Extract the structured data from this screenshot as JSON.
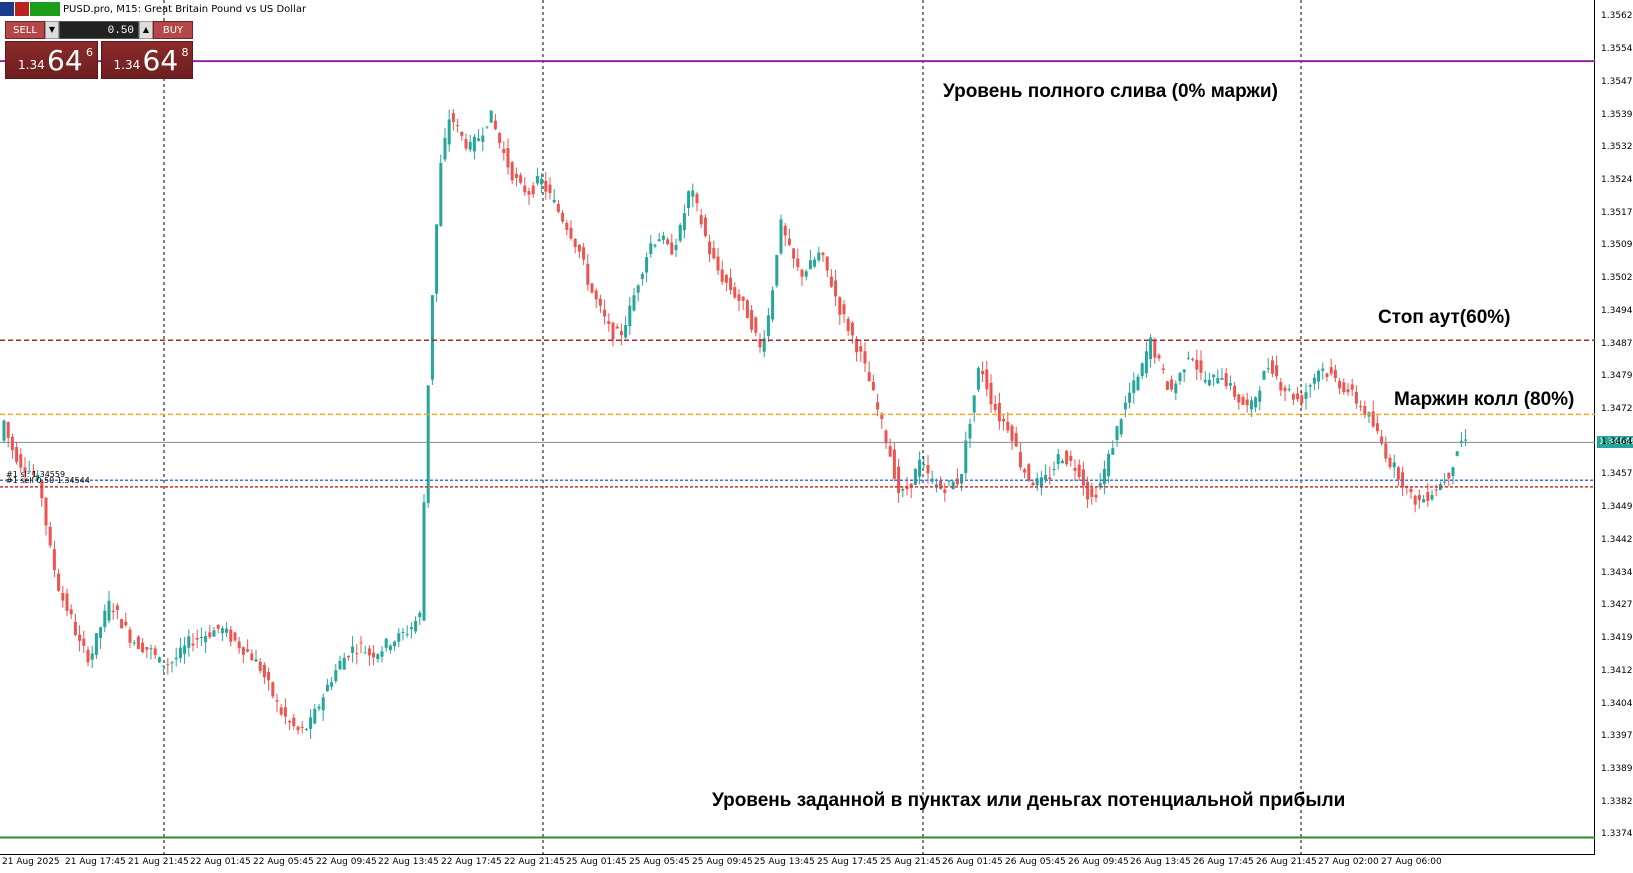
{
  "window": {
    "title": "PUSD.pro, M15:  Great Britain Pound vs US Dollar"
  },
  "trade_panel": {
    "sell_label": "SELL",
    "buy_label": "BUY",
    "lot_value": "0.50",
    "sell_price_small": "1.34",
    "sell_price_big": "64",
    "sell_price_sup": "6",
    "buy_price_small": "1.34",
    "buy_price_big": "64",
    "buy_price_sup": "8"
  },
  "annotations": {
    "full_loss": "Уровень полного слива (0% маржи)",
    "stop_out": "Стоп аут(60%)",
    "margin_call": "Маржин колл (80%)",
    "take_profit": "Уровень заданной в пунктах или деньгах потенциальной прибыли"
  },
  "order_labels": {
    "line1": "#1 sl: 1.34559",
    "line2": "#1 sell 0.50 1.34544"
  },
  "current_price_label": "1.34646",
  "y_axis": {
    "labels": [
      "1.35620",
      "1.35545",
      "1.35470",
      "1.35395",
      "1.35320",
      "1.35245",
      "1.35170",
      "1.35095",
      "1.35020",
      "1.34945",
      "1.34870",
      "1.34795",
      "1.34720",
      "1.34645",
      "1.34570",
      "1.34495",
      "1.34420",
      "1.34345",
      "1.34270",
      "1.34195",
      "1.34120",
      "1.34045",
      "1.33970",
      "1.33895",
      "1.33820",
      "1.33745"
    ]
  },
  "x_axis": {
    "labels": [
      "21 Aug 2025",
      "21 Aug 17:45",
      "21 Aug 21:45",
      "22 Aug 01:45",
      "22 Aug 05:45",
      "22 Aug 09:45",
      "22 Aug 13:45",
      "22 Aug 17:45",
      "22 Aug 21:45",
      "25 Aug 01:45",
      "25 Aug 05:45",
      "25 Aug 09:45",
      "25 Aug 13:45",
      "25 Aug 17:45",
      "25 Aug 21:45",
      "26 Aug 01:45",
      "26 Aug 05:45",
      "26 Aug 09:45",
      "26 Aug 13:45",
      "26 Aug 17:45",
      "26 Aug 21:45",
      "27 Aug 02:00",
      "27 Aug 06:00"
    ]
  },
  "chart_data": {
    "type": "candlestick",
    "symbol": "GBPUSD.pro",
    "timeframe": "M15",
    "y_range": [
      1.337,
      1.3566
    ],
    "levels": {
      "full_loss": 1.3552,
      "stop_out": 1.3488,
      "margin_call": 1.3471,
      "current_price": 1.34646,
      "order_sl": 1.34559,
      "order_open": 1.34544,
      "take_profit": 1.3374
    },
    "colors": {
      "bull": "#26a69a",
      "bear": "#ef5350",
      "full_loss": "#8e24aa",
      "stop_out": "#a52a2a",
      "margin_call": "#f5a623",
      "take_profit": "#2e8b2e",
      "current_price": "#7f8c8d",
      "order_line": "#4a6fd6",
      "sl_line": "#d32f2f"
    }
  }
}
